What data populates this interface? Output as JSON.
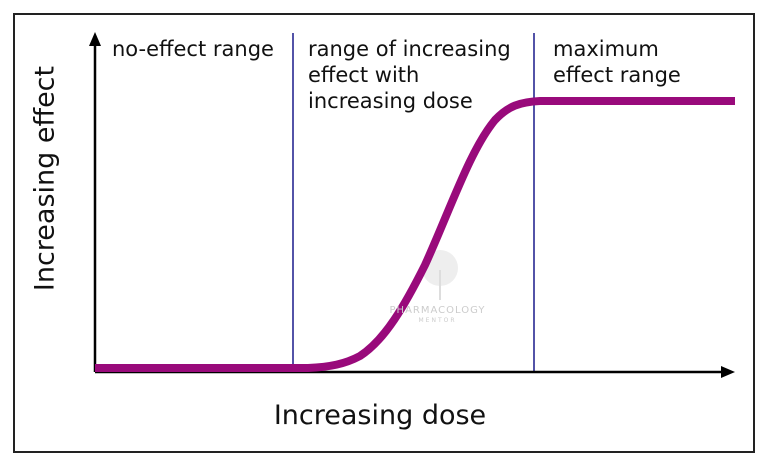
{
  "regions": [
    {
      "label_lines": [
        "no-effect range"
      ]
    },
    {
      "label_lines": [
        "range of increasing",
        "effect with",
        "increasing dose"
      ]
    },
    {
      "label_lines": [
        "maximum",
        "effect range"
      ]
    }
  ],
  "axes": {
    "y_label": "Increasing effect",
    "x_label": "Increasing dose"
  },
  "watermark": {
    "line1": "PHARMACOLOGY",
    "line2": "MENTOR"
  },
  "colors": {
    "curve": "#990a7b",
    "dividers": "#1a1a8c",
    "axes": "#000000"
  }
}
